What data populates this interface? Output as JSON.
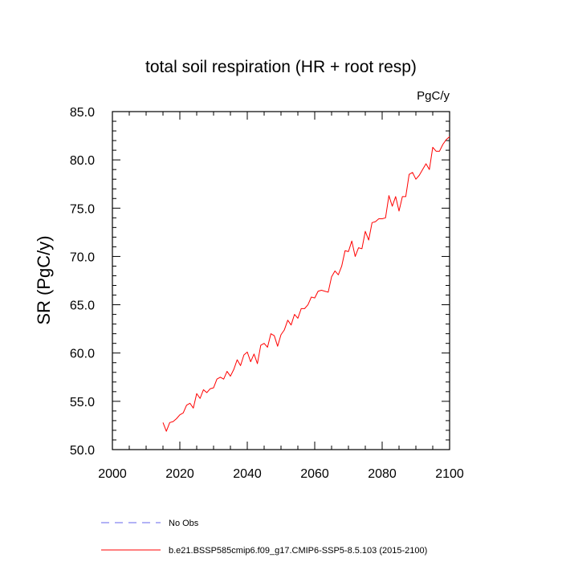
{
  "chart_data": {
    "type": "line",
    "title": "total soil respiration (HR + root resp)",
    "units": "PgC/y",
    "ylabel": "SR  (PgC/y)",
    "xlabel": "",
    "xlim": [
      2000,
      2100
    ],
    "ylim": [
      50,
      85
    ],
    "x_ticks": [
      2000,
      2020,
      2040,
      2060,
      2080,
      2100
    ],
    "x_tick_labels": [
      "2000",
      "2020",
      "2040",
      "2060",
      "2080",
      "2100"
    ],
    "y_ticks": [
      50,
      55,
      60,
      65,
      70,
      75,
      80,
      85
    ],
    "y_tick_labels": [
      "50.0",
      "55.0",
      "60.0",
      "65.0",
      "70.0",
      "75.0",
      "80.0",
      "85.0"
    ],
    "grid": false,
    "legend_placement": "bottom",
    "series": [
      {
        "name": "No Obs",
        "color": "#6666ee",
        "style": "dashed",
        "x": [],
        "y": []
      },
      {
        "name": "b.e21.BSSP585cmip6.f09_g17.CMIP6-SSP5-8.5.103 (2015-2100)",
        "color": "#ff0000",
        "style": "solid",
        "x": [
          2015,
          2016,
          2017,
          2018,
          2019,
          2020,
          2021,
          2022,
          2023,
          2024,
          2025,
          2026,
          2027,
          2028,
          2029,
          2030,
          2031,
          2032,
          2033,
          2034,
          2035,
          2036,
          2037,
          2038,
          2039,
          2040,
          2041,
          2042,
          2043,
          2044,
          2045,
          2046,
          2047,
          2048,
          2049,
          2050,
          2051,
          2052,
          2053,
          2054,
          2055,
          2056,
          2057,
          2058,
          2059,
          2060,
          2061,
          2062,
          2063,
          2064,
          2065,
          2066,
          2067,
          2068,
          2069,
          2070,
          2071,
          2072,
          2073,
          2074,
          2075,
          2076,
          2077,
          2078,
          2079,
          2080,
          2081,
          2082,
          2083,
          2084,
          2085,
          2086,
          2087,
          2088,
          2089,
          2090,
          2091,
          2092,
          2093,
          2094,
          2095,
          2096,
          2097,
          2098,
          2099,
          2100
        ],
        "y": [
          52.8,
          51.9,
          52.8,
          52.9,
          53.2,
          53.6,
          53.8,
          54.6,
          54.8,
          54.3,
          55.8,
          55.3,
          56.2,
          55.9,
          56.3,
          56.4,
          57.3,
          57.5,
          57.3,
          58.1,
          57.6,
          58.3,
          59.3,
          58.7,
          59.8,
          60.1,
          59.1,
          59.9,
          58.9,
          60.8,
          61.0,
          60.6,
          62.0,
          61.8,
          60.7,
          61.9,
          62.4,
          63.4,
          62.9,
          64.0,
          63.6,
          64.6,
          64.6,
          65.0,
          65.8,
          65.7,
          66.4,
          66.5,
          66.4,
          66.3,
          67.9,
          68.5,
          68.1,
          69.0,
          70.6,
          70.5,
          71.6,
          70.0,
          70.9,
          70.8,
          72.6,
          71.7,
          73.5,
          73.6,
          73.9,
          73.9,
          74.0,
          76.3,
          75.2,
          76.2,
          74.7,
          76.2,
          76.2,
          78.5,
          78.7,
          78.0,
          78.4,
          79.0,
          79.6,
          79.0,
          81.3,
          80.9,
          80.9,
          81.6,
          82.1,
          82.4
        ]
      }
    ]
  }
}
